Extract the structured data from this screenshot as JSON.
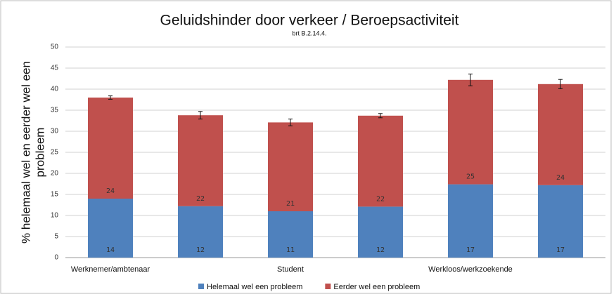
{
  "chart_data": {
    "type": "stacked_bar",
    "title": "Geluidshinder door verkeer / Beroepsactiviteit",
    "subtitle": "brt B.2.14.4.",
    "ylabel": [
      "% helemaal wel en eerder wel een",
      "probleem"
    ],
    "categories": [
      "Werknemer/ambtenaar",
      null,
      "Student",
      null,
      "Werkloos/werkzoekende",
      null
    ],
    "series": [
      {
        "name": "Helemaal wel een probleem",
        "color": "#4f81bd",
        "values": [
          14,
          12.2,
          11,
          12.1,
          17.4,
          17.2
        ],
        "value_labels": [
          "14",
          "12",
          "11",
          "12",
          "17",
          "17"
        ]
      },
      {
        "name": "Eerder wel een probleem",
        "color": "#c0504d",
        "values": [
          24,
          21.6,
          21.1,
          21.6,
          24.8,
          24
        ],
        "value_labels": [
          "24",
          "22",
          "21",
          "22",
          "25",
          "24"
        ],
        "errors": [
          0.4,
          0.9,
          0.8,
          0.5,
          1.4,
          1.1
        ]
      }
    ],
    "ylim": [
      0,
      50
    ],
    "yticks": [
      0,
      5,
      10,
      15,
      20,
      25,
      30,
      35,
      40,
      45,
      50
    ],
    "grid": true,
    "legend": "bottom"
  }
}
